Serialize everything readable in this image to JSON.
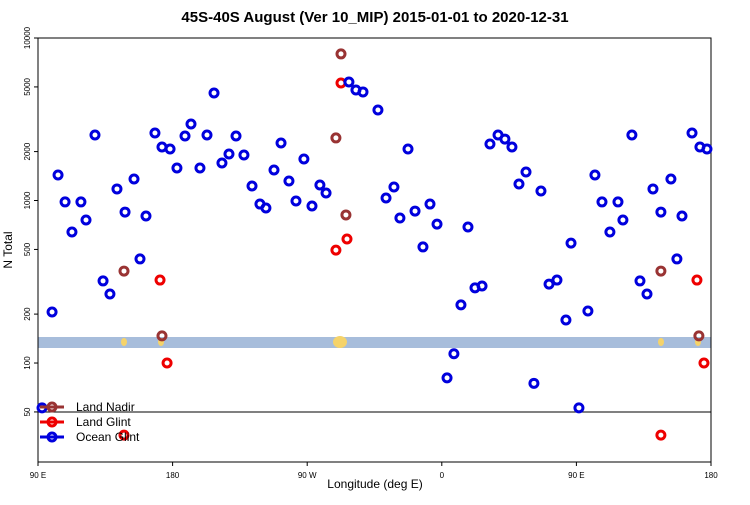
{
  "chart_data": {
    "type": "scatter",
    "title": "45S-40S August (Ver 10_MIP)   2015-01-01 to 2020-12-31",
    "x_label": "Longitude (deg E)",
    "y_label": "N Total",
    "log_y": true,
    "legend": "lower left",
    "xlim": [
      90,
      540
    ],
    "ylim": [
      24.6,
      10000
    ],
    "xticks": [
      {
        "value": 90,
        "label": "90 E"
      },
      180,
      {
        "value": 270,
        "label": "90 W"
      },
      {
        "value": 360,
        "label": "0"
      },
      {
        "value": 450,
        "label": "90 E"
      },
      180.0001
    ],
    "yticks": [
      50,
      100,
      200,
      500,
      1000,
      2000,
      5000,
      10000
    ],
    "series": [
      {
        "name": "Land Nadir",
        "color": "#993333",
        "x": [
          147.5,
          172.9,
          292.6,
          289.2,
          295.9,
          506.5,
          531.9
        ],
        "values": [
          368,
          147,
          7980,
          2427,
          815,
          368,
          147
        ]
      },
      {
        "name": "Land Glint",
        "color": "#ee0000",
        "x": [
          171.6,
          176.3,
          292.6,
          296.6,
          289.2,
          147.5,
          506.5,
          530.6,
          535.3
        ],
        "values": [
          324,
          100,
          5285,
          580,
          495,
          36,
          36,
          324,
          100
        ]
      },
      {
        "name": "Ocean Glint",
        "color": "#0000dd",
        "x": [
          92.7,
          99.4,
          103.4,
          108.1,
          112.7,
          118.7,
          122.1,
          128.1,
          133.5,
          138.1,
          142.8,
          148.2,
          154.2,
          158.2,
          162.2,
          168.2,
          172.9,
          178.3,
          182.9,
          188.3,
          192.3,
          198.3,
          203.0,
          207.7,
          213.0,
          217.7,
          222.4,
          227.7,
          233.1,
          238.4,
          242.4,
          247.8,
          252.5,
          257.8,
          262.5,
          267.8,
          273.2,
          278.5,
          282.6,
          297.9,
          302.6,
          307.3,
          317.3,
          322.7,
          328.0,
          332.0,
          337.4,
          342.1,
          347.4,
          352.1,
          356.8,
          363.5,
          368.1,
          372.8,
          377.5,
          382.2,
          386.9,
          392.2,
          397.6,
          402.2,
          406.9,
          411.6,
          416.3,
          421.6,
          426.3,
          431.7,
          437.0,
          443.0,
          446.4,
          451.7,
          457.7,
          462.4,
          467.1,
          472.4,
          477.8,
          481.1,
          487.1,
          492.5,
          497.2,
          501.2,
          506.5,
          513.2,
          517.2,
          520.6,
          527.3,
          532.6,
          537.3
        ],
        "values": [
          53,
          206,
          1435,
          980,
          640,
          980,
          759,
          2530,
          320,
          266,
          1178,
          849,
          1357,
          437,
          803,
          2602,
          2134,
          2075,
          1585,
          2494,
          2958,
          1585,
          2530,
          4590,
          1702,
          1932,
          2494,
          1905,
          1228,
          951,
          899,
          1540,
          2259,
          1318,
          993,
          1800,
          925,
          1245,
          1112,
          5360,
          4786,
          4656,
          3606,
          1036,
          1211,
          780,
          2075,
          861,
          518,
          951,
          716,
          81,
          114,
          228,
          687,
          290,
          298,
          2228,
          2530,
          2388,
          2134,
          1264,
          1497,
          75,
          1144,
          306,
          324,
          184,
          547,
          53,
          209,
          1435,
          980,
          640,
          980,
          759,
          2530,
          320,
          266,
          1178,
          849,
          1357,
          437,
          803,
          2602,
          2134,
          2075
        ]
      }
    ]
  }
}
